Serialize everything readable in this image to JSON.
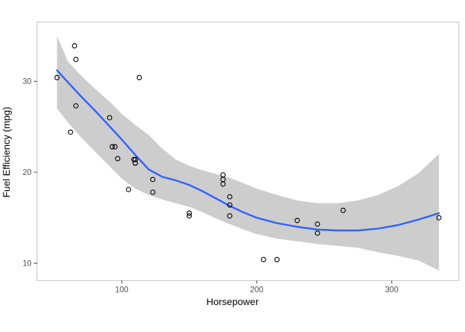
{
  "chart_data": {
    "type": "scatter",
    "title": "",
    "xlabel": "Horsepower",
    "ylabel": "Fuel Efficiency (mpg)",
    "xlim": [
      37.2,
      349.7
    ],
    "ylim": [
      8.1,
      36.5
    ],
    "x_ticks": [
      100,
      200,
      300
    ],
    "y_ticks": [
      10,
      20,
      30
    ],
    "grid": "off",
    "legend": "none",
    "series": [
      {
        "name": "observations",
        "type": "scatter",
        "marker": "open-circle",
        "points": [
          [
            110,
            21.0
          ],
          [
            110,
            21.0
          ],
          [
            93,
            22.8
          ],
          [
            110,
            21.4
          ],
          [
            175,
            18.7
          ],
          [
            105,
            18.1
          ],
          [
            245,
            14.3
          ],
          [
            62,
            24.4
          ],
          [
            95,
            22.8
          ],
          [
            123,
            19.2
          ],
          [
            123,
            17.8
          ],
          [
            180,
            16.4
          ],
          [
            180,
            17.3
          ],
          [
            180,
            15.2
          ],
          [
            205,
            10.4
          ],
          [
            215,
            10.4
          ],
          [
            230,
            14.7
          ],
          [
            66,
            32.4
          ],
          [
            52,
            30.4
          ],
          [
            65,
            33.9
          ],
          [
            97,
            21.5
          ],
          [
            150,
            15.5
          ],
          [
            150,
            15.2
          ],
          [
            245,
            13.3
          ],
          [
            175,
            19.2
          ],
          [
            66,
            27.3
          ],
          [
            91,
            26.0
          ],
          [
            113,
            30.4
          ],
          [
            264,
            15.8
          ],
          [
            175,
            19.7
          ],
          [
            335,
            15.0
          ],
          [
            109,
            21.4
          ]
        ]
      },
      {
        "name": "loess-smooth",
        "type": "line",
        "points": [
          [
            52,
            31.2
          ],
          [
            60,
            29.9
          ],
          [
            70,
            28.3
          ],
          [
            80,
            26.8
          ],
          [
            90,
            25.2
          ],
          [
            100,
            23.6
          ],
          [
            110,
            21.9
          ],
          [
            120,
            20.3
          ],
          [
            130,
            19.5
          ],
          [
            140,
            19.1
          ],
          [
            150,
            18.6
          ],
          [
            160,
            17.9
          ],
          [
            170,
            17.1
          ],
          [
            180,
            16.3
          ],
          [
            190,
            15.6
          ],
          [
            200,
            15.0
          ],
          [
            215,
            14.4
          ],
          [
            230,
            14.0
          ],
          [
            245,
            13.7
          ],
          [
            260,
            13.6
          ],
          [
            275,
            13.6
          ],
          [
            290,
            13.8
          ],
          [
            305,
            14.2
          ],
          [
            320,
            14.8
          ],
          [
            335,
            15.5
          ]
        ]
      },
      {
        "name": "confidence-ribbon",
        "type": "ribbon",
        "points": [
          [
            52,
            27.0,
            35.0
          ],
          [
            60,
            25.5,
            32.2
          ],
          [
            70,
            23.8,
            30.6
          ],
          [
            80,
            22.3,
            29.2
          ],
          [
            90,
            20.8,
            27.9
          ],
          [
            100,
            19.3,
            26.4
          ],
          [
            110,
            18.2,
            25.2
          ],
          [
            120,
            17.5,
            24.1
          ],
          [
            130,
            17.0,
            22.6
          ],
          [
            140,
            16.6,
            21.4
          ],
          [
            150,
            16.2,
            20.7
          ],
          [
            160,
            15.6,
            20.2
          ],
          [
            170,
            14.9,
            19.8
          ],
          [
            180,
            14.3,
            19.4
          ],
          [
            190,
            13.7,
            18.8
          ],
          [
            200,
            13.2,
            18.2
          ],
          [
            215,
            12.7,
            17.5
          ],
          [
            230,
            12.4,
            16.9
          ],
          [
            245,
            12.1,
            16.6
          ],
          [
            260,
            11.9,
            16.6
          ],
          [
            275,
            11.7,
            16.9
          ],
          [
            290,
            11.2,
            17.5
          ],
          [
            305,
            10.8,
            18.5
          ],
          [
            320,
            10.3,
            19.9
          ],
          [
            335,
            9.2,
            22.0
          ]
        ]
      }
    ],
    "colors": {
      "smooth_line": "#3162FF",
      "ribbon": "#CDCDCD",
      "point_stroke": "#000000",
      "panel_background": "#FFFFFF",
      "panel_border": "#C9C9C9",
      "tick_mark": "#333333",
      "tick_label": "#4D4D4D",
      "axis_title": "#000000"
    }
  }
}
